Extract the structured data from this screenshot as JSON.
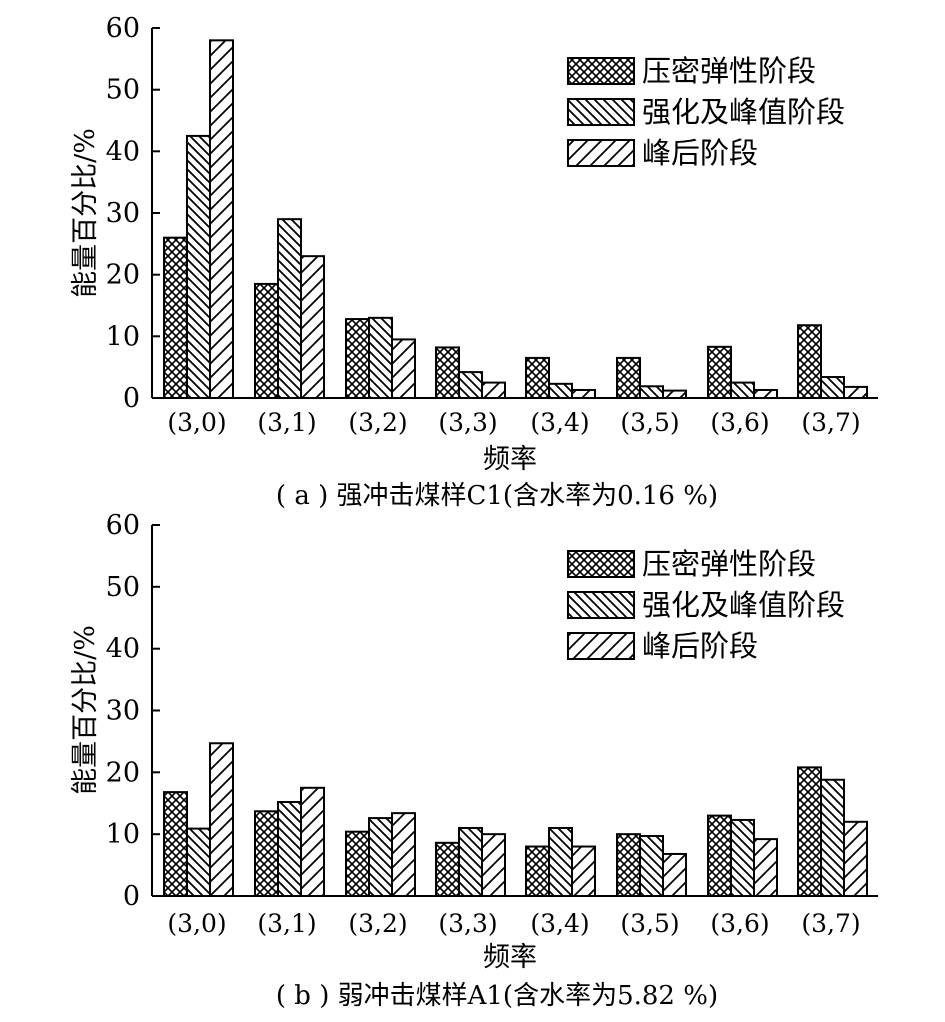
{
  "chart_data": [
    {
      "type": "bar",
      "caption": "( a ) 强冲击煤样C1(含水率为0.16 %)",
      "xlabel": "频率",
      "ylabel": "能量百分比/%",
      "ylim": [
        0,
        60
      ],
      "yticks": [
        "0",
        "10",
        "20",
        "30",
        "40",
        "50",
        "60"
      ],
      "categories": [
        "(3,0)",
        "(3,1)",
        "(3,2)",
        "(3,3)",
        "(3,4)",
        "(3,5)",
        "(3,6)",
        "(3,7)"
      ],
      "legend_position": "top-right",
      "series": [
        {
          "name": "压密弹性阶段",
          "pattern": "crosshatch",
          "values": [
            26,
            18.5,
            12.8,
            8.2,
            6.5,
            6.5,
            8.3,
            11.8
          ]
        },
        {
          "name": "强化及峰值阶段",
          "pattern": "backslash",
          "values": [
            42.5,
            29,
            13,
            4.2,
            2.3,
            1.9,
            2.5,
            3.4
          ]
        },
        {
          "name": "峰后阶段",
          "pattern": "slash",
          "values": [
            58,
            23,
            9.5,
            2.5,
            1.3,
            1.2,
            1.3,
            1.8
          ]
        }
      ]
    },
    {
      "type": "bar",
      "caption": "( b ) 弱冲击煤样A1(含水率为5.82 %)",
      "xlabel": "频率",
      "ylabel": "能量百分比/%",
      "ylim": [
        0,
        60
      ],
      "yticks": [
        "0",
        "10",
        "20",
        "30",
        "40",
        "50",
        "60"
      ],
      "categories": [
        "(3,0)",
        "(3,1)",
        "(3,2)",
        "(3,3)",
        "(3,4)",
        "(3,5)",
        "(3,6)",
        "(3,7)"
      ],
      "legend_position": "top-right",
      "series": [
        {
          "name": "压密弹性阶段",
          "pattern": "crosshatch",
          "values": [
            16.8,
            13.7,
            10.4,
            8.6,
            8,
            10,
            13,
            20.8
          ]
        },
        {
          "name": "强化及峰值阶段",
          "pattern": "backslash",
          "values": [
            10.9,
            15.2,
            12.6,
            11,
            11,
            9.7,
            12.3,
            18.8
          ]
        },
        {
          "name": "峰后阶段",
          "pattern": "slash",
          "values": [
            24.7,
            17.5,
            13.4,
            10,
            8,
            6.8,
            9.2,
            12
          ]
        }
      ]
    }
  ]
}
